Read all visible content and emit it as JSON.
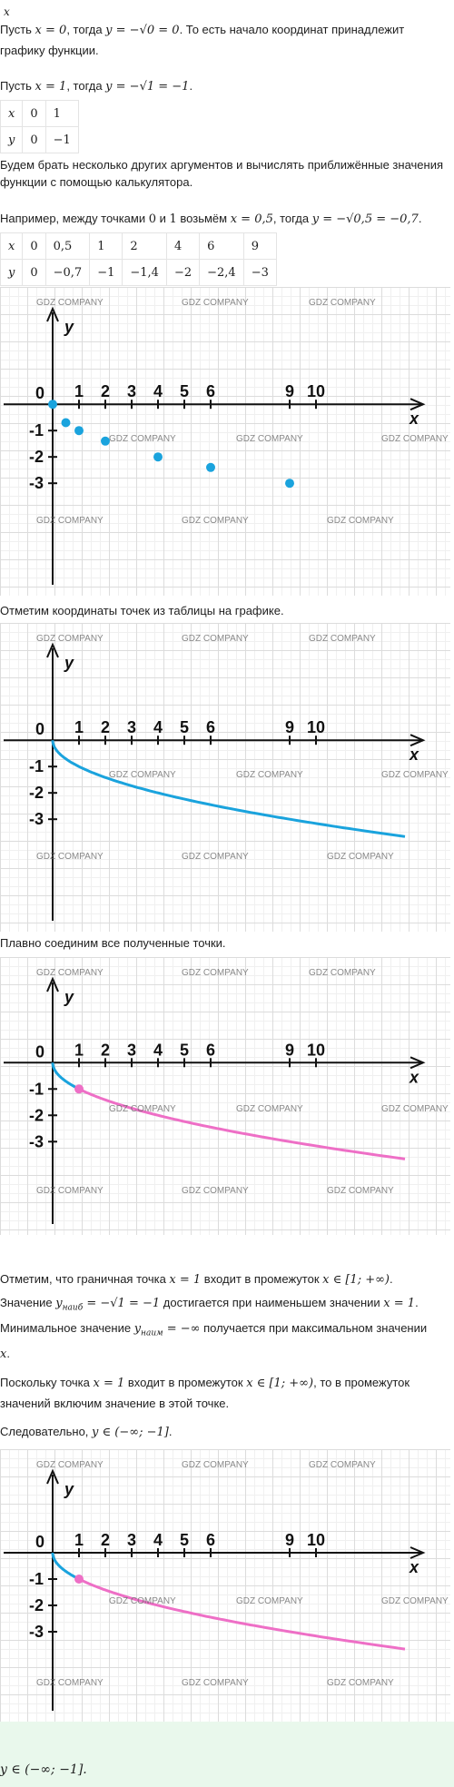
{
  "top_fragment": "x",
  "p1": "Пусть x = 0, тогда y = −√0 = 0. То есть начало координат принадлежит графику функции.",
  "p1a": "Пусть ",
  "p1b": "x = 0",
  "p1c": ", тогда ",
  "p1d": "y = −√0 = 0",
  "p1e": ". То есть начало координат принадлежит",
  "p1f": "графику функции.",
  "p2a": "Пусть ",
  "p2b": "x = 1",
  "p2c": ", тогда ",
  "p2d": "y = −√1 = −1",
  "p2e": ".",
  "table1": {
    "rows": [
      [
        "x",
        "0",
        "1"
      ],
      [
        "y",
        "0",
        "−1"
      ]
    ]
  },
  "p3": "Будем брать несколько других аргументов и вычислять приближённые значения функции с помощью калькулятора.",
  "p4a": "Например, между точками ",
  "p4b": "0",
  "p4c": " и ",
  "p4d": "1",
  "p4e": " возьмём ",
  "p4f": "x = 0,5",
  "p4g": ", тогда ",
  "p4h": "y = −√0,5 = −0,7",
  "p4i": ".",
  "table2": {
    "rows": [
      [
        "x",
        "0",
        "0,5",
        "1",
        "2",
        "4",
        "6",
        "9"
      ],
      [
        "y",
        "0",
        "−0,7",
        "−1",
        "−1,4",
        "−2",
        "−2,4",
        "−3"
      ]
    ]
  },
  "p5": "Отметим координаты точек из таблицы на графике.",
  "p6": "Плавно соединим все полученные точки.",
  "p7a": "Отметим, что граничная точка ",
  "p7b": "x = 1",
  "p7c": " входит в промежуток ",
  "p7d": "x ∈ [1; +∞)",
  "p7e": ".",
  "p8a": "Значение ",
  "p8b": "y",
  "p8b_sub": "наиб",
  "p8c": " = −√1 = −1",
  "p8d": " достигается при наименьшем значении ",
  "p8e": "x = 1",
  "p8f": ".",
  "p9a": "Минимальное значение ",
  "p9b": "y",
  "p9b_sub": "наим",
  "p9c": " = −∞",
  "p9d": " получается при максимальном значении",
  "p9e": "x",
  "p9f": ".",
  "p10a": "Поскольку точка ",
  "p10b": "x = 1",
  "p10c": " входит в промежуток ",
  "p10d": "x ∈ [1; +∞)",
  "p10e": ", то в промежуток",
  "p10f": "значений включим значение в этой точке.",
  "p11a": "Следовательно, ",
  "p11b": "y ∈ (−∞; −1]",
  "p11c": ".",
  "answer": "y ∈ (−∞; −1].",
  "watermark": "GDZ COMPANY",
  "graph": {
    "x_label": "x",
    "y_label": "y",
    "origin_label": "0",
    "x_ticks": [
      "1",
      "2",
      "3",
      "4",
      "5",
      "6",
      "9",
      "10"
    ],
    "x_tick_values": [
      1,
      2,
      3,
      4,
      5,
      6,
      9,
      10
    ],
    "y_ticks": [
      "-1",
      "-2",
      "-3"
    ],
    "y_tick_values": [
      -1,
      -2,
      -3
    ]
  },
  "points": [
    {
      "x": 0,
      "y": 0
    },
    {
      "x": 0.5,
      "y": -0.7
    },
    {
      "x": 1,
      "y": -1
    },
    {
      "x": 2,
      "y": -1.4
    },
    {
      "x": 4,
      "y": -2
    },
    {
      "x": 6,
      "y": -2.4
    },
    {
      "x": 9,
      "y": -3
    }
  ],
  "colors": {
    "blue": "#1aa3dd",
    "pink": "#ee6fc6",
    "answer_bg": "#e9f8ec",
    "grid": "#dcdcdc"
  }
}
